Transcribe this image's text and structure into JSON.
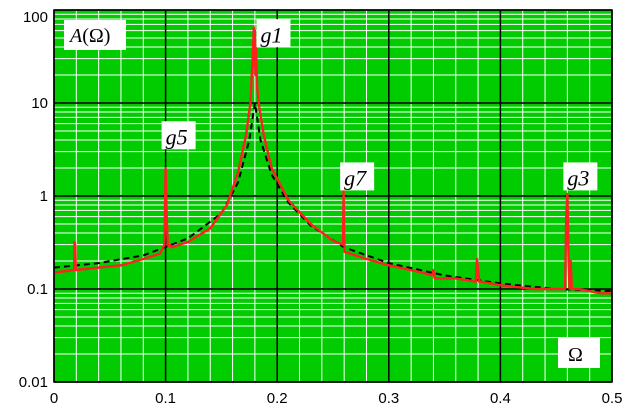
{
  "chart_data": {
    "type": "line",
    "title": "",
    "xlabel": "Ω",
    "ylabel_italic": "A",
    "ylabel_rest": "(Ω)",
    "xlim": [
      0,
      0.5
    ],
    "ylim": [
      0.01,
      100
    ],
    "yscale": "log",
    "grid": true,
    "background_color": "#00cc00",
    "grid_major_color": "#000000",
    "grid_minor_color": "#ffffff",
    "x_ticks": [
      0,
      0.1,
      0.2,
      0.3,
      0.4,
      0.5
    ],
    "x_tick_labels": [
      "0",
      "0.1",
      "0.2",
      "0.3",
      "0.4",
      "0.5"
    ],
    "y_ticks": [
      0.01,
      0.1,
      1,
      10,
      100
    ],
    "y_tick_labels": [
      "0.01",
      "0.1",
      "1",
      "10",
      "100"
    ],
    "annotations": [
      {
        "text": "g1",
        "x": 0.185,
        "y": 45
      },
      {
        "text": "g5",
        "x": 0.1,
        "y": 3.6
      },
      {
        "text": "g7",
        "x": 0.26,
        "y": 1.3
      },
      {
        "text": "g3",
        "x": 0.46,
        "y": 1.3
      }
    ],
    "series": [
      {
        "style": "solid",
        "color": "#ff2020",
        "x": [
          0.0,
          0.018,
          0.0185,
          0.019,
          0.0195,
          0.02,
          0.04,
          0.06,
          0.08,
          0.095,
          0.099,
          0.1,
          0.101,
          0.102,
          0.103,
          0.104,
          0.105,
          0.12,
          0.14,
          0.155,
          0.165,
          0.172,
          0.176,
          0.178,
          0.179,
          0.1795,
          0.18,
          0.1805,
          0.181,
          0.182,
          0.184,
          0.188,
          0.195,
          0.21,
          0.23,
          0.25,
          0.259,
          0.2595,
          0.26,
          0.2605,
          0.261,
          0.28,
          0.3,
          0.33,
          0.339,
          0.34,
          0.341,
          0.36,
          0.378,
          0.379,
          0.38,
          0.381,
          0.382,
          0.4,
          0.43,
          0.455,
          0.458,
          0.459,
          0.46,
          0.461,
          0.462,
          0.463,
          0.464,
          0.47,
          0.49,
          0.5
        ],
        "y": [
          0.15,
          0.16,
          0.32,
          0.3,
          0.16,
          0.16,
          0.17,
          0.18,
          0.21,
          0.24,
          0.3,
          2.0,
          0.6,
          0.3,
          0.29,
          0.3,
          0.28,
          0.32,
          0.45,
          0.8,
          1.8,
          4.5,
          10,
          30,
          65,
          25,
          60,
          20,
          40,
          15,
          9,
          4.5,
          2.0,
          0.9,
          0.5,
          0.33,
          0.3,
          1.15,
          0.35,
          0.25,
          0.25,
          0.21,
          0.18,
          0.15,
          0.14,
          0.16,
          0.13,
          0.13,
          0.12,
          0.21,
          0.16,
          0.12,
          0.12,
          0.11,
          0.1,
          0.1,
          0.1,
          0.6,
          1.05,
          0.2,
          0.1,
          0.2,
          0.1,
          0.1,
          0.09,
          0.09
        ]
      },
      {
        "style": "dashed",
        "color": "#000000",
        "x": [
          0.0,
          0.04,
          0.08,
          0.12,
          0.15,
          0.165,
          0.175,
          0.18,
          0.185,
          0.195,
          0.21,
          0.23,
          0.26,
          0.3,
          0.35,
          0.4,
          0.45,
          0.5
        ],
        "y": [
          0.17,
          0.19,
          0.23,
          0.35,
          0.65,
          1.4,
          4.0,
          10.0,
          4.0,
          1.7,
          0.85,
          0.48,
          0.28,
          0.19,
          0.14,
          0.115,
          0.1,
          0.095
        ]
      }
    ]
  }
}
